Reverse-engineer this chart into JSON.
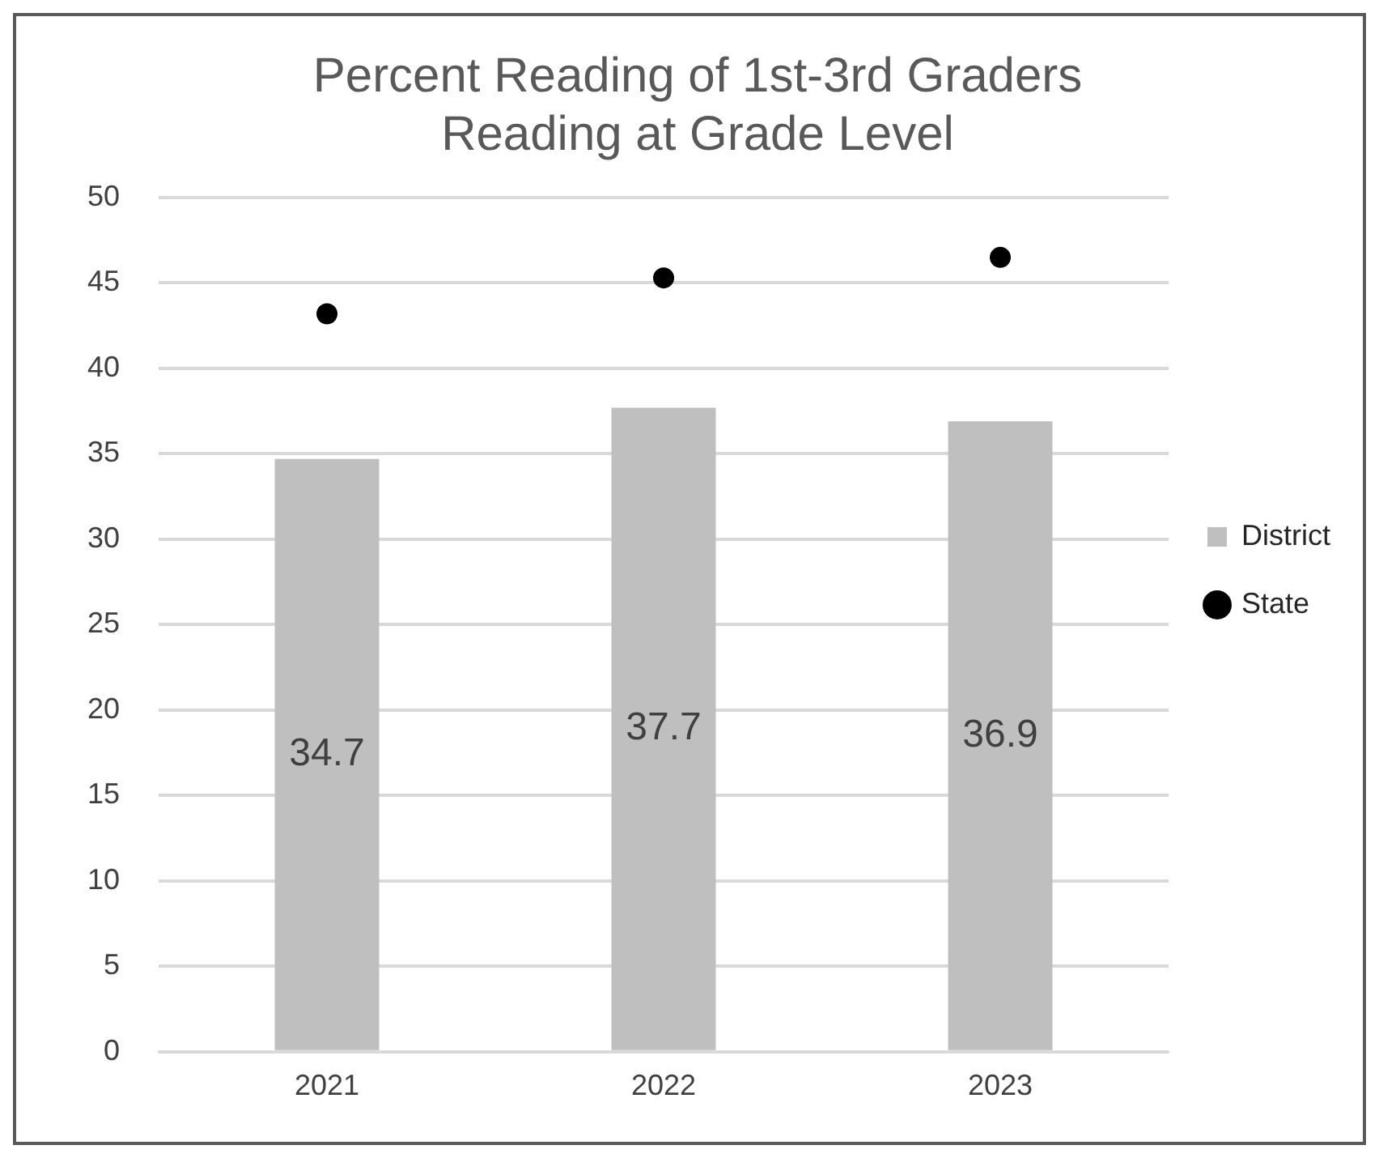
{
  "chart_data": {
    "type": "bar",
    "title": "Percent Reading of 1st-3rd Graders\nReading at Grade Level",
    "categories": [
      "2021",
      "2022",
      "2023"
    ],
    "series": [
      {
        "name": "District",
        "color": "#bfbfbf",
        "values": [
          34.7,
          37.7,
          36.9
        ],
        "value_labels": [
          "34.7",
          "37.7",
          "36.9"
        ]
      },
      {
        "name": "State",
        "type": "scatter",
        "color": "#000000",
        "values": [
          43.2,
          45.3,
          46.5
        ]
      }
    ],
    "ylim": [
      0,
      50
    ],
    "yticks": [
      0,
      5,
      10,
      15,
      20,
      25,
      30,
      35,
      40,
      45,
      50
    ],
    "grid": "y",
    "legend": "right",
    "marker": "circle"
  }
}
